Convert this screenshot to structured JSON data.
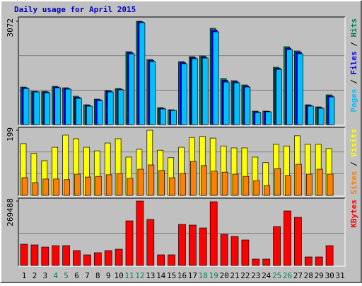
{
  "title": "Daily usage for April 2015",
  "legend_separator": " / ",
  "chart_data": [
    {
      "type": "bar",
      "ylim": [
        0,
        3072
      ],
      "yticks": [
        3072
      ],
      "series": [
        {
          "name": "Pages",
          "color": "#00c0ff",
          "values": [
            1073,
            968,
            947,
            1094,
            1052,
            778,
            547,
            715,
            968,
            1031,
            2104,
            3030,
            1873,
            463,
            421,
            1809,
            1957,
            1978,
            2756,
            1262,
            1241,
            1115,
            358,
            379,
            1641,
            2230,
            2104,
            547,
            484,
            821,
            0
          ]
        },
        {
          "name": "Files",
          "color": "#0000ff",
          "values": [
            1094,
            979,
            968,
            1115,
            1073,
            810,
            568,
            736,
            989,
            1052,
            2136,
            3051,
            1905,
            484,
            432,
            1841,
            1989,
            2010,
            2808,
            1315,
            1273,
            1147,
            379,
            390,
            1673,
            2272,
            2146,
            568,
            505,
            853,
            0
          ]
        },
        {
          "name": "Hits",
          "color": "#00805c",
          "values": [
            1115,
            989,
            989,
            1136,
            1094,
            842,
            589,
            757,
            1010,
            1073,
            2167,
            3072,
            1936,
            505,
            442,
            1873,
            2020,
            2041,
            2861,
            1368,
            1305,
            1178,
            400,
            400,
            1704,
            2314,
            2188,
            589,
            526,
            884,
            0
          ]
        }
      ]
    },
    {
      "type": "bar",
      "ylim": [
        0,
        199
      ],
      "yticks": [
        199
      ],
      "series": [
        {
          "name": "Sites",
          "color": "#ff8000",
          "values": [
            54,
            39,
            50,
            50,
            48,
            65,
            56,
            58,
            63,
            67,
            52,
            80,
            93,
            76,
            54,
            67,
            104,
            91,
            74,
            71,
            65,
            58,
            45,
            30,
            82,
            61,
            95,
            65,
            80,
            65,
            0
          ]
        },
        {
          "name": "Visits",
          "color": "#ffff00",
          "values": [
            158,
            128,
            106,
            147,
            184,
            173,
            147,
            136,
            160,
            173,
            117,
            141,
            199,
            138,
            115,
            147,
            177,
            180,
            175,
            151,
            145,
            145,
            117,
            100,
            156,
            151,
            182,
            156,
            156,
            143,
            0
          ]
        }
      ]
    },
    {
      "type": "bar",
      "ylim": [
        0,
        269488
      ],
      "yticks": [
        269488
      ],
      "categories": [
        "1",
        "2",
        "3",
        "4",
        "5",
        "6",
        "7",
        "8",
        "9",
        "10",
        "11",
        "12",
        "13",
        "14",
        "15",
        "16",
        "17",
        "18",
        "19",
        "20",
        "21",
        "22",
        "23",
        "24",
        "25",
        "26",
        "27",
        "28",
        "29",
        "30",
        "31"
      ],
      "category_colors": [
        "#000000",
        "#000000",
        "#000000",
        "#00805c",
        "#00805c",
        "#000000",
        "#000000",
        "#000000",
        "#000000",
        "#000000",
        "#00805c",
        "#00805c",
        "#000000",
        "#000000",
        "#000000",
        "#000000",
        "#000000",
        "#00805c",
        "#00805c",
        "#000000",
        "#000000",
        "#000000",
        "#000000",
        "#000000",
        "#00805c",
        "#00805c",
        "#000000",
        "#000000",
        "#000000",
        "#000000",
        "#000000"
      ],
      "series": [
        {
          "name": "KBytes",
          "color": "#ff0000",
          "values": [
            88830,
            85870,
            76990,
            82910,
            82910,
            62180,
            44420,
            53300,
            62180,
            68100,
            186540,
            269488,
            192470,
            44420,
            44420,
            171740,
            168780,
            156930,
            266490,
            130280,
            121400,
            106600,
            26650,
            26650,
            162860,
            228000,
            201350,
            35530,
            35530,
            82910,
            0
          ]
        }
      ]
    }
  ]
}
